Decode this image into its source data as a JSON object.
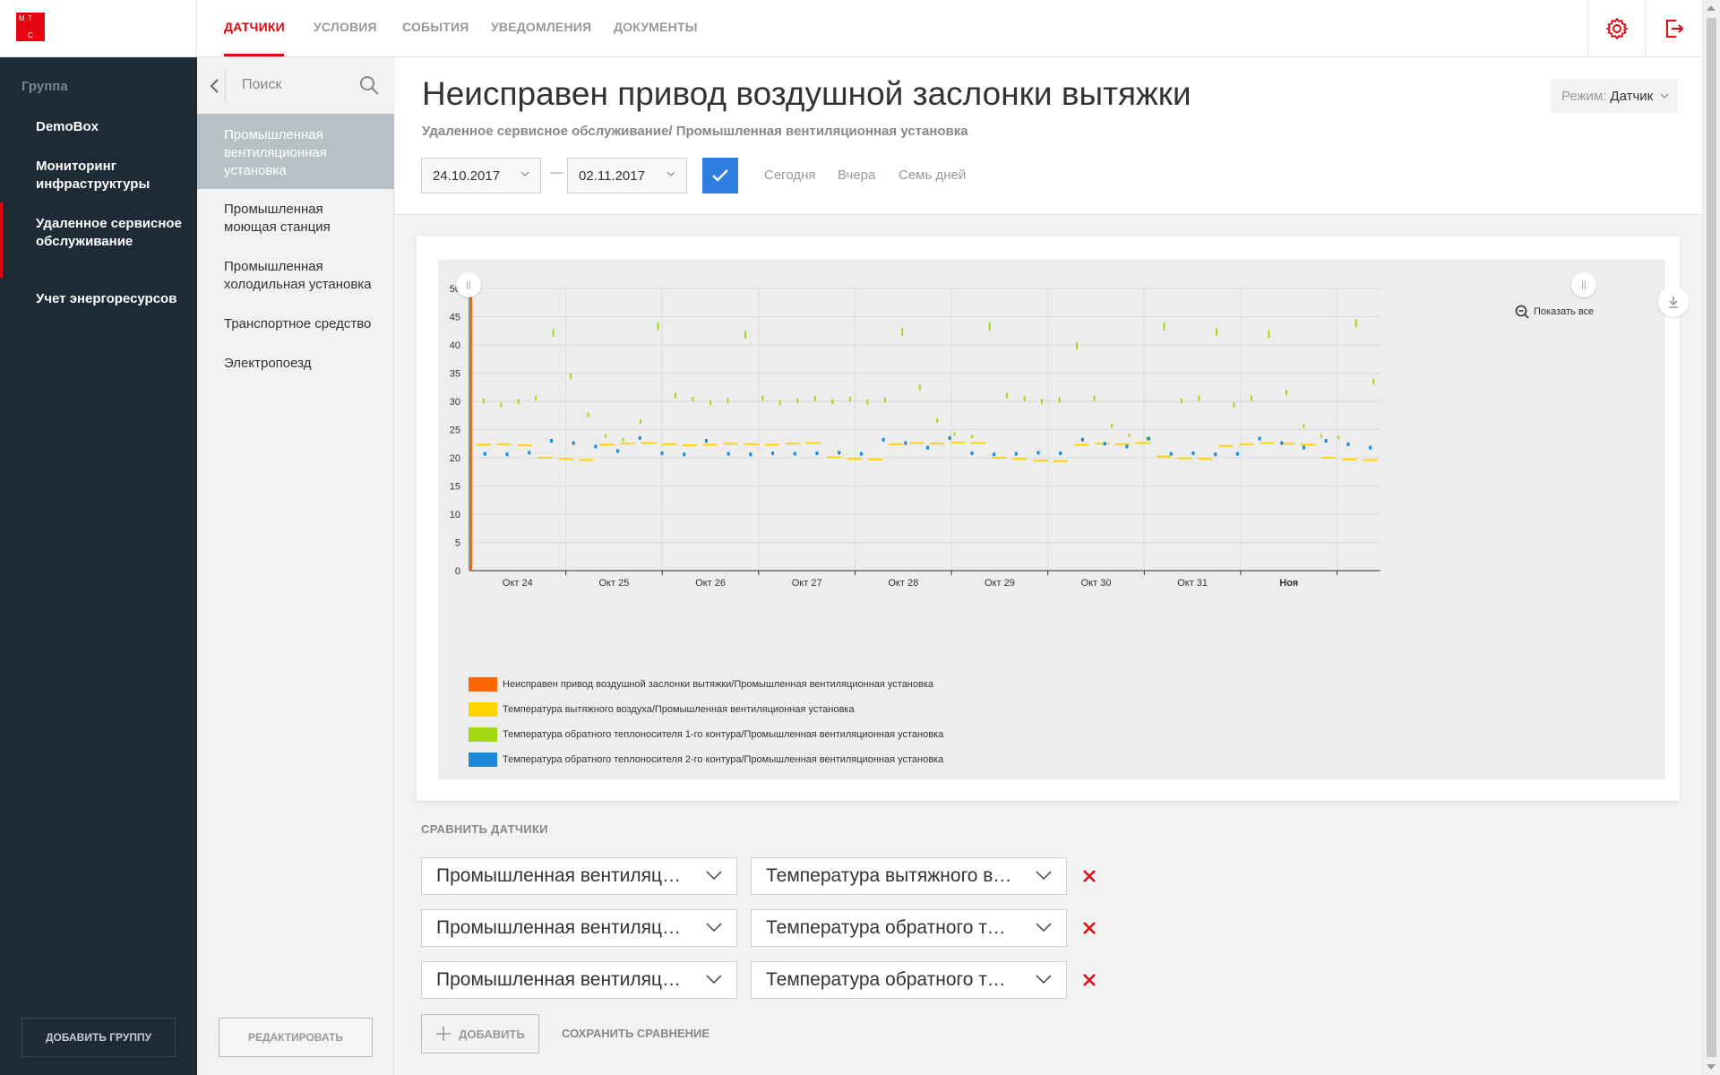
{
  "brand": {
    "logo_letters": [
      "М",
      "Т",
      "С"
    ],
    "accent": "#e30611"
  },
  "nav": {
    "tabs": [
      {
        "label": "ДАТЧИКИ",
        "active": true
      },
      {
        "label": "УСЛОВИЯ",
        "active": false
      },
      {
        "label": "СОБЫТИЯ",
        "active": false
      },
      {
        "label": "УВЕДОМЛЕНИЯ",
        "active": false
      },
      {
        "label": "ДОКУМЕНТЫ",
        "active": false
      }
    ],
    "icons": [
      "gear-icon",
      "logout-icon"
    ]
  },
  "sidebar": {
    "title": "Группа",
    "items": [
      {
        "label": "DemoBox"
      },
      {
        "label": "Мониторинг инфраструктуры"
      },
      {
        "label": "Удаленное сервисное обслуживание",
        "active": true
      },
      {
        "label": "Учет энергоресурсов"
      }
    ],
    "add_button": "ДОБАВИТЬ ГРУППУ"
  },
  "subpanel": {
    "search_placeholder": "Поиск",
    "items": [
      {
        "label": "Промышленная вентиляционная установка",
        "active": true
      },
      {
        "label": "Промышленная моющая станция"
      },
      {
        "label": "Промышленная холодильная установка"
      },
      {
        "label": "Транспортное средство"
      },
      {
        "label": "Электропоезд"
      }
    ],
    "edit_button": "РЕДАКТИРОВАТЬ"
  },
  "header": {
    "title": "Неисправен привод воздушной заслонки вытяжки",
    "breadcrumb": "Удаленное сервисное обслуживание/ Промышленная вентиляционная установка",
    "mode_label": "Режим:",
    "mode_value": "Датчик",
    "date_from": "24.10.2017",
    "date_to": "02.11.2017",
    "date_separator": "—",
    "quick_links": [
      "Сегодня",
      "Вчера",
      "Семь дней"
    ]
  },
  "chart": {
    "show_all": "Показать все"
  },
  "chart_data": {
    "type": "bar",
    "y_ticks": [
      0,
      5,
      10,
      15,
      20,
      25,
      30,
      35,
      40,
      45,
      50
    ],
    "ylim": [
      0,
      50
    ],
    "x_ticks": [
      "Окт 24",
      "Окт 25",
      "Окт 26",
      "Окт 27",
      "Окт 28",
      "Окт 29",
      "Окт 30",
      "Окт 31",
      "Ноя"
    ],
    "x_tick_bold": [
      false,
      false,
      false,
      false,
      false,
      false,
      false,
      false,
      true
    ],
    "grid": true,
    "legend_placement": "bottom-left",
    "series": [
      {
        "name": "Неисправен привод воздушной заслонки вытяжки/Промышленная вентиляционная установка",
        "color": "#ff6600",
        "values": [
          50
        ]
      },
      {
        "name": "Температура вытяжного воздуха/Промышленная вентиляционная установка",
        "color": "#ffd400",
        "values": [
          22.3,
          22.4,
          22.2,
          20.0,
          19.8,
          19.6,
          22.3,
          22.5,
          22.6,
          22.4,
          22.2,
          22.3,
          22.5,
          22.4,
          22.3,
          22.5,
          22.6,
          20.1,
          19.8,
          19.7,
          22.4,
          22.6,
          22.5,
          22.7,
          22.6,
          20.0,
          19.8,
          19.5,
          19.4,
          22.3,
          22.5,
          22.4,
          22.6,
          20.2,
          19.9,
          19.8,
          22.1,
          22.4,
          22.6,
          22.5,
          22.3,
          20.0,
          19.7,
          19.6
        ]
      },
      {
        "name": "Температура обратного теплоносителя 1-го контура/Промышленная вентиляционная установка",
        "color": "#a3d913",
        "values": [
          30.5,
          29.8,
          30.4,
          31.0,
          42.8,
          35.0,
          28.0,
          24.2,
          23.5,
          26.8,
          44.0,
          31.5,
          30.8,
          30.2,
          30.6,
          42.5,
          31.0,
          30.2,
          30.6,
          30.9,
          30.4,
          30.8,
          30.3,
          30.7,
          43.0,
          33.0,
          27.0,
          24.5,
          24.1,
          44.0,
          31.5,
          30.9,
          30.4,
          30.7,
          40.5,
          31.0,
          26.0,
          24.3,
          23.7,
          44.0,
          30.5,
          31.0,
          43.0,
          29.8,
          31.0,
          42.6,
          32.0,
          26.0,
          24.2,
          23.9,
          44.5,
          34.0
        ]
      },
      {
        "name": "Температура обратного теплоносителя 2-го контура/Промышленная вентиляционная установка",
        "color": "#1e88d8",
        "values": [
          20.7,
          20.6,
          20.9,
          23.0,
          22.6,
          22.0,
          21.2,
          23.5,
          20.8,
          20.6,
          23.0,
          20.7,
          20.6,
          20.8,
          20.7,
          20.8,
          20.9,
          20.7,
          23.2,
          22.6,
          21.8,
          23.5,
          20.8,
          20.6,
          20.7,
          20.9,
          20.8,
          23.2,
          22.5,
          22.0,
          23.4,
          20.7,
          20.8,
          20.6,
          20.7,
          23.4,
          22.6,
          21.8,
          23.0,
          22.4,
          21.8
        ]
      }
    ]
  },
  "compare": {
    "title": "СРАВНИТЬ ДАТЧИКИ",
    "rows": [
      {
        "device": "Промышленная вентиляци...",
        "sensor": "Температура вытяжного воз..."
      },
      {
        "device": "Промышленная вентиляци...",
        "sensor": "Температура обратного теп..."
      },
      {
        "device": "Промышленная вентиляци...",
        "sensor": "Температура обратного теп..."
      }
    ],
    "add_label": "ДОБАВИТЬ",
    "save_label": "СОХРАНИТЬ СРАВНЕНИЕ"
  }
}
